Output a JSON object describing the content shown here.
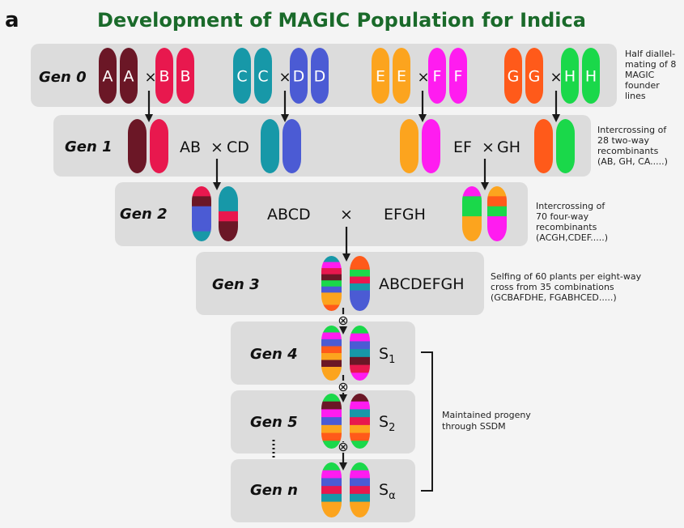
{
  "panel_letter": "a",
  "title": "Development of MAGIC Population for Indica",
  "colors": {
    "A": "#6b1726",
    "B": "#e8184e",
    "C": "#1798a8",
    "D": "#4b5bd4",
    "E": "#fca41e",
    "F": "#ff1cf0",
    "G": "#ff5a1a",
    "H": "#1ad84a",
    "title": "#1a6a2a",
    "box": "#dcdcdc",
    "arrow": "#1a1a1a"
  },
  "generations": [
    {
      "label": "Gen 0",
      "note": [
        "Half diallel-",
        "mating of 8",
        "MAGIC",
        "founder",
        "lines"
      ]
    },
    {
      "label": "Gen 1",
      "note": [
        "Intercrossing of",
        "28 two-way",
        "recombinants",
        "(AB, GH, CA.....)"
      ]
    },
    {
      "label": "Gen 2",
      "note": [
        "Intercrossing of",
        "70 four-way",
        "recombinants",
        "(ACGH,CDEF.....)"
      ]
    },
    {
      "label": "Gen 3",
      "note": [
        "Selfing of 60 plants per eight-way",
        "cross from 35 combinations",
        "(GCBAFDHE, FGABHCED.....)"
      ]
    },
    {
      "label": "Gen 4",
      "note": []
    },
    {
      "label": "Gen 5",
      "note": []
    },
    {
      "label": "Gen n",
      "note": []
    }
  ],
  "gen0_pairs": [
    {
      "left": "A",
      "right": "B"
    },
    {
      "left": "C",
      "right": "D"
    },
    {
      "left": "E",
      "right": "F"
    },
    {
      "left": "G",
      "right": "H"
    }
  ],
  "cross_symbol": "×",
  "self_symbol": "⊗",
  "gen1_crosses": [
    "AB",
    "CD",
    "EF",
    "GH"
  ],
  "gen2_crosses": [
    "ABCD",
    "EFGH"
  ],
  "gen3_label": "ABCDEFGH",
  "selfing_gens": [
    {
      "base": "S",
      "sub": "1"
    },
    {
      "base": "S",
      "sub": "2"
    },
    {
      "base": "S",
      "sub": "α"
    }
  ],
  "bracket_note": [
    "Maintained progeny",
    "through SSDM"
  ]
}
